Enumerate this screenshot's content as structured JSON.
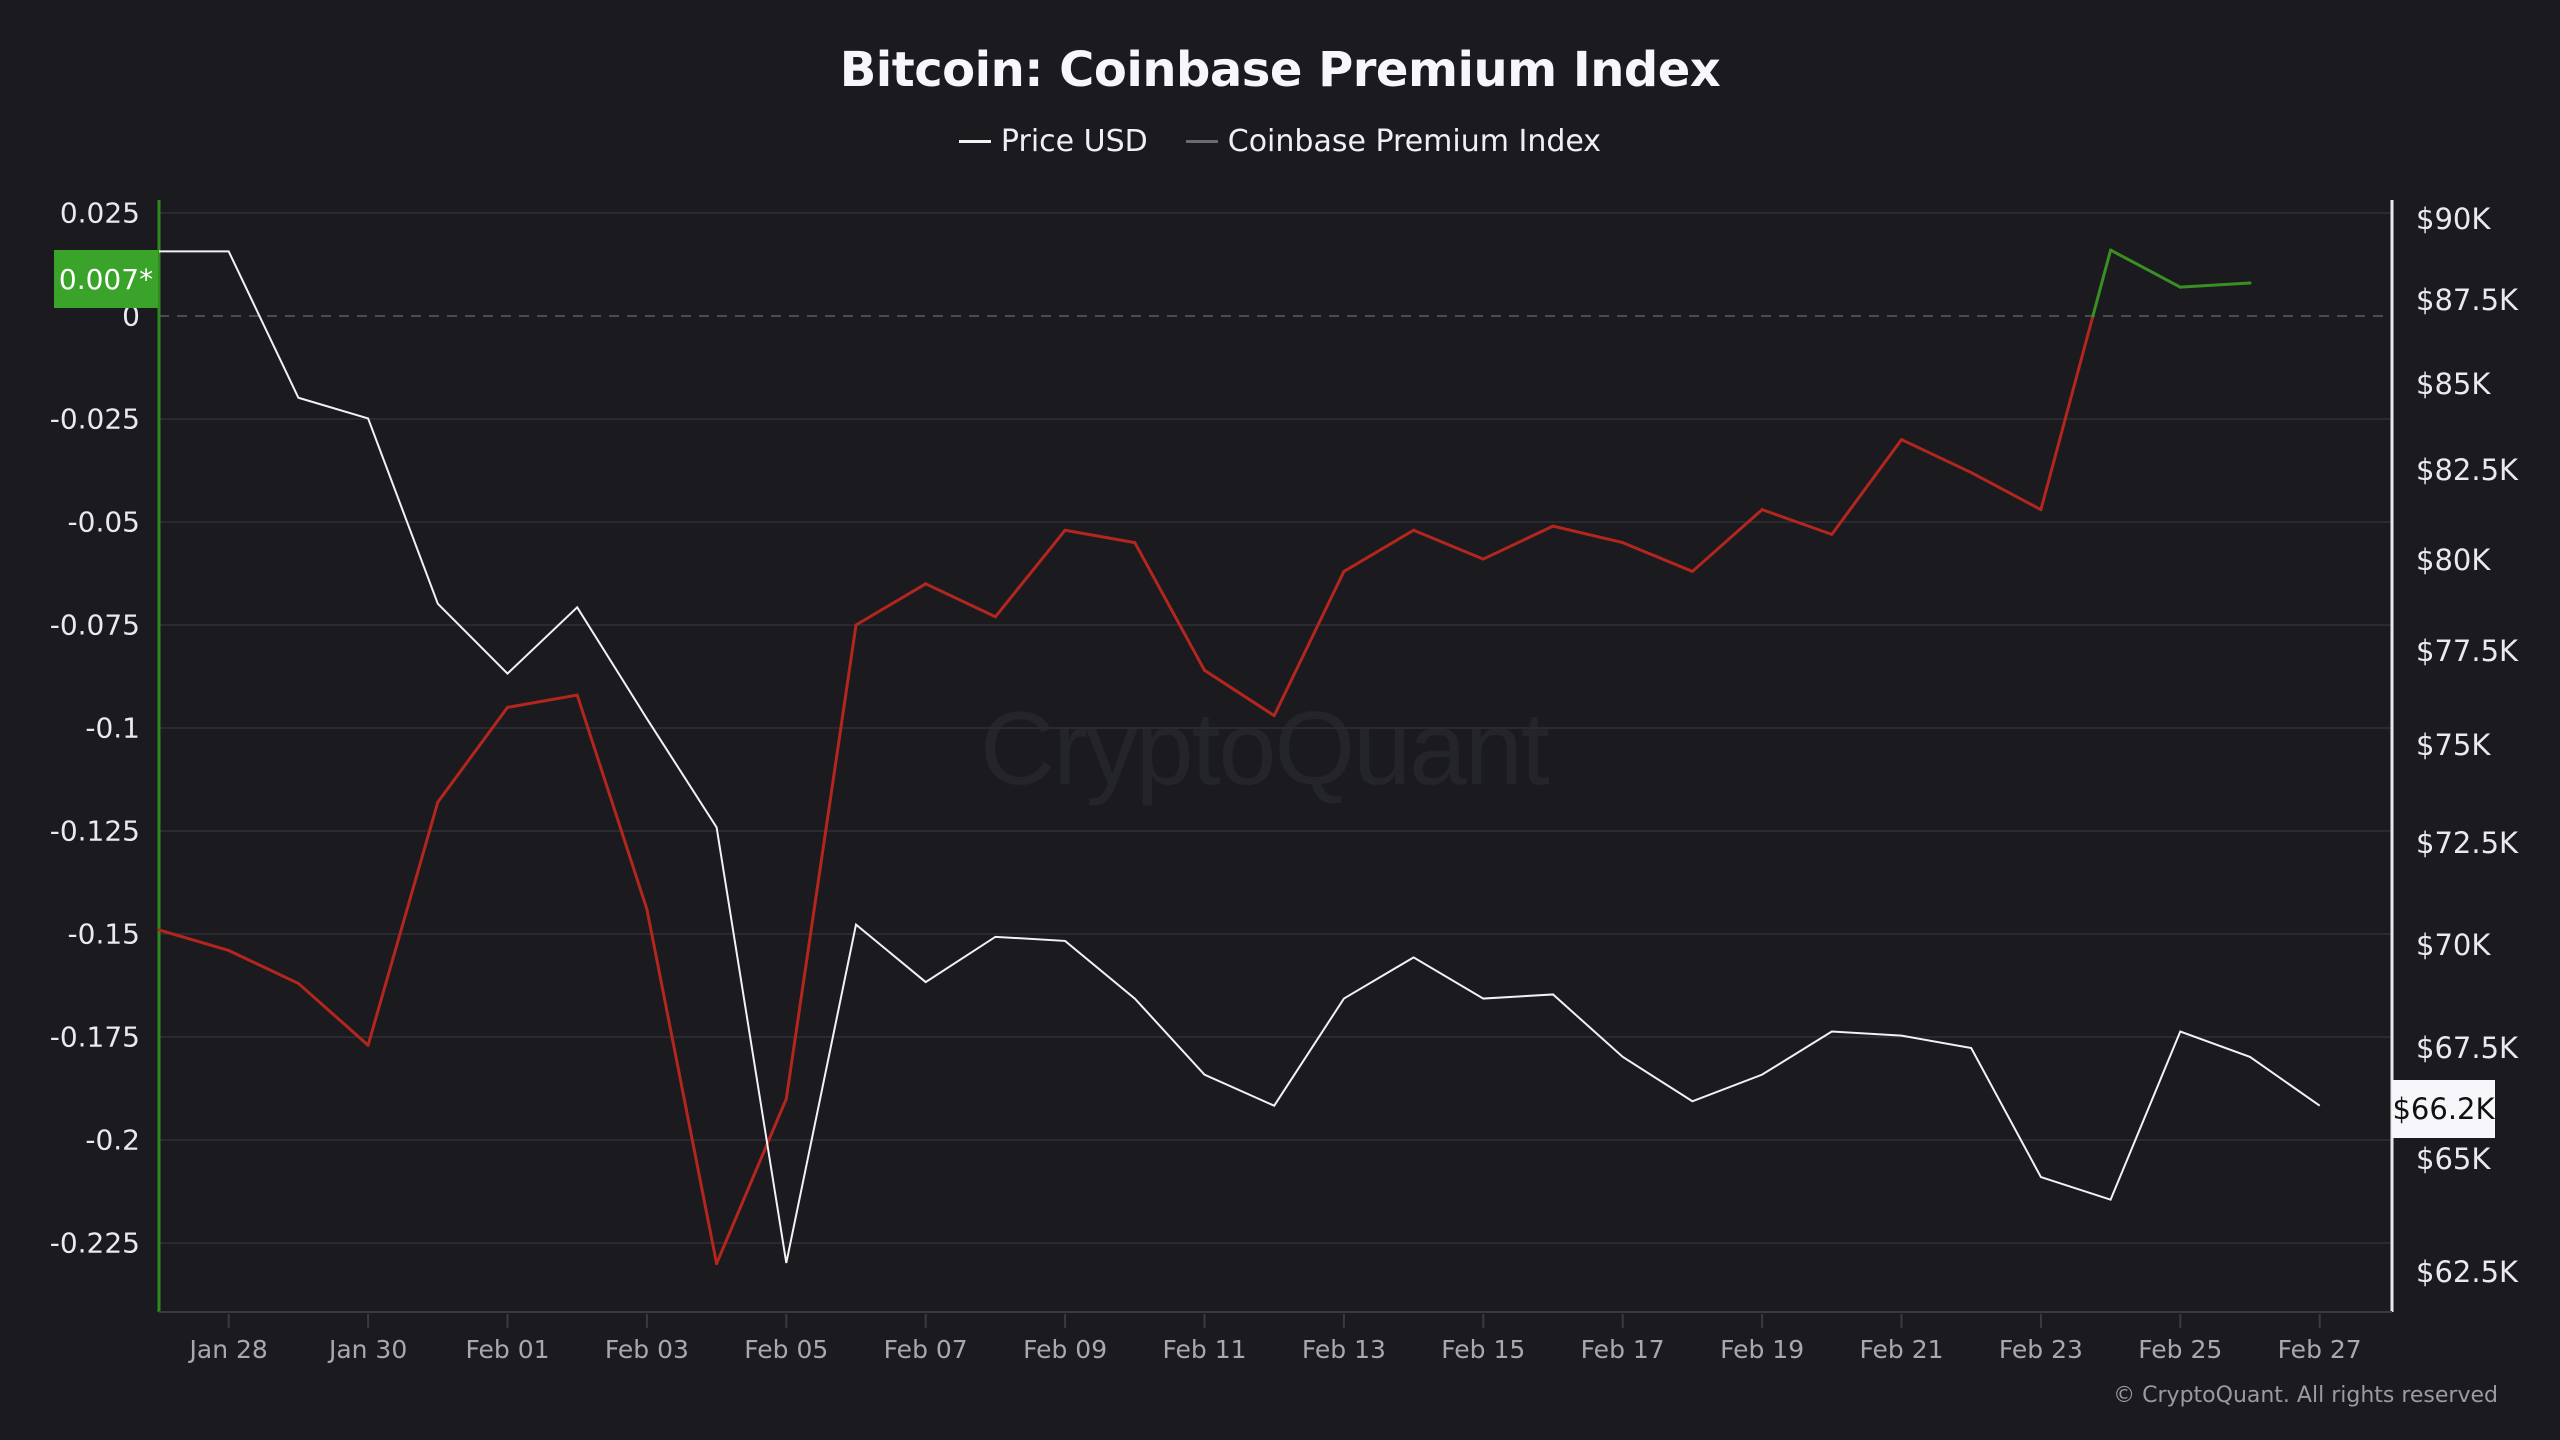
{
  "title": "Bitcoin: Coinbase Premium Index",
  "legend": [
    {
      "label": "Price USD",
      "color": "#f2f2f5"
    },
    {
      "label": "Coinbase Premium Index",
      "color": "#6b6b72"
    }
  ],
  "left_axis": {
    "ticks": [
      "0.025",
      "0",
      "-0.025",
      "-0.05",
      "-0.075",
      "-0.1",
      "-0.125",
      "-0.15",
      "-0.175",
      "-0.2",
      "-0.225"
    ],
    "current_value_label": "0.007*",
    "current_value_color": "#3aa329"
  },
  "right_axis": {
    "ticks": [
      "$90K",
      "$87.5K",
      "$85K",
      "$82.5K",
      "$80K",
      "$77.5K",
      "$75K",
      "$72.5K",
      "$70K",
      "$67.5K",
      "$65K",
      "$62.5K"
    ],
    "current_value_label": "$66.2K"
  },
  "x_axis": {
    "ticks": [
      "Jan 28",
      "Jan 30",
      "Feb 01",
      "Feb 03",
      "Feb 05",
      "Feb 07",
      "Feb 09",
      "Feb 11",
      "Feb 13",
      "Feb 15",
      "Feb 17",
      "Feb 19",
      "Feb 21",
      "Feb 23",
      "Feb 25",
      "Feb 27"
    ]
  },
  "watermark": "CryptoQuant",
  "copyright": "© CryptoQuant. All rights reserved",
  "colors": {
    "background": "#1a1a1f",
    "price_line": "#f2f2f5",
    "premium_negative": "#b3261e",
    "premium_positive": "#3a8f23",
    "left_axis_line": "#2f8a1f",
    "gridline": "#2a2a30"
  },
  "chart_data": {
    "type": "line",
    "title": "Bitcoin: Coinbase Premium Index",
    "xlabel": "",
    "ylabel_left": "Coinbase Premium Index",
    "ylabel_right": "Price USD",
    "ylim_left": [
      -0.235,
      0.03
    ],
    "ylim_right": [
      62000,
      91000
    ],
    "right_axis_scale": "log",
    "grid": true,
    "legend_position": "top-center",
    "x": [
      "Jan 27",
      "Jan 28",
      "Jan 29",
      "Jan 30",
      "Jan 31",
      "Feb 01",
      "Feb 02",
      "Feb 03",
      "Feb 04",
      "Feb 05",
      "Feb 06",
      "Feb 07",
      "Feb 08",
      "Feb 09",
      "Feb 10",
      "Feb 11",
      "Feb 12",
      "Feb 13",
      "Feb 14",
      "Feb 15",
      "Feb 16",
      "Feb 17",
      "Feb 18",
      "Feb 19",
      "Feb 20",
      "Feb 21",
      "Feb 22",
      "Feb 23",
      "Feb 24",
      "Feb 25",
      "Feb 26",
      "Feb 27"
    ],
    "series": [
      {
        "name": "Price USD",
        "axis": "right",
        "values": [
          89000,
          89000,
          84600,
          84000,
          78800,
          76900,
          78700,
          75700,
          72900,
          62700,
          70500,
          69100,
          70200,
          70100,
          68700,
          66900,
          66200,
          68700,
          69700,
          68700,
          68800,
          67300,
          66300,
          66900,
          67900,
          67800,
          67500,
          64600,
          64100,
          67900,
          67300,
          66200
        ]
      },
      {
        "name": "Coinbase Premium Index",
        "axis": "left",
        "values": [
          -0.149,
          -0.154,
          -0.162,
          -0.177,
          -0.118,
          -0.095,
          -0.092,
          -0.144,
          -0.23,
          -0.19,
          -0.075,
          -0.065,
          -0.073,
          -0.052,
          -0.055,
          -0.086,
          -0.097,
          -0.062,
          -0.052,
          -0.059,
          -0.051,
          -0.055,
          -0.062,
          -0.047,
          -0.053,
          -0.03,
          -0.038,
          -0.047,
          0.016,
          0.007,
          0.008,
          null
        ]
      }
    ],
    "annotations": [
      "0.007*",
      "$66.2K"
    ]
  }
}
